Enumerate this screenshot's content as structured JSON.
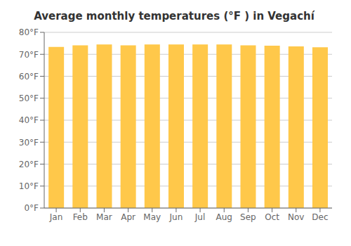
{
  "chart_data": {
    "type": "bar",
    "title": "Average monthly temperatures (°F ) in Vegachí",
    "categories": [
      "Jan",
      "Feb",
      "Mar",
      "Apr",
      "May",
      "Jun",
      "Jul",
      "Aug",
      "Sep",
      "Oct",
      "Nov",
      "Dec"
    ],
    "values": [
      73.4,
      74.1,
      74.5,
      74.1,
      74.5,
      74.5,
      74.5,
      74.5,
      74.1,
      73.9,
      73.6,
      73.2
    ],
    "color": "#FFC84A",
    "ylim": [
      0,
      80
    ],
    "yticks": [
      {
        "value": 0,
        "label": "0°F"
      },
      {
        "value": 10,
        "label": "10°F"
      },
      {
        "value": 20,
        "label": "20°F"
      },
      {
        "value": 30,
        "label": "30°F"
      },
      {
        "value": 40,
        "label": "40°F"
      },
      {
        "value": 50,
        "label": "50°F"
      },
      {
        "value": 60,
        "label": "60°F"
      },
      {
        "value": 70,
        "label": "70°F"
      },
      {
        "value": 80,
        "label": "80°F"
      }
    ],
    "grid": true
  }
}
